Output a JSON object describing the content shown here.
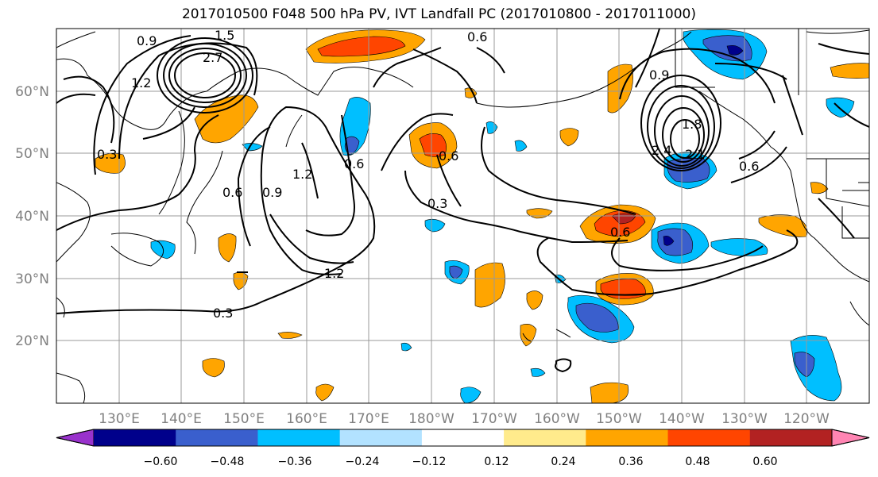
{
  "title": "2017010500 F048 500 hPa PV, IVT Landfall PC (2017010800 - 2017011000)",
  "lon_labels": [
    "130°E",
    "140°E",
    "150°E",
    "160°E",
    "170°E",
    "180°W",
    "170°W",
    "160°W",
    "150°W",
    "140°W",
    "130°W",
    "120°W"
  ],
  "lat_labels": [
    "60°N",
    "50°N",
    "40°N",
    "30°N",
    "20°N"
  ],
  "colorbar": {
    "labels": [
      "−0.60",
      "−0.48",
      "−0.36",
      "−0.24",
      "−0.12",
      "0.12",
      "0.24",
      "0.36",
      "0.48",
      "0.60"
    ],
    "colors": [
      "#9932cc",
      "#00008b",
      "#3a5fcd",
      "#00bfff",
      "#b2e2ff",
      "#ffffff",
      "#ffeb8c",
      "#ffa500",
      "#ff4500",
      "#b22222",
      "#ff85b3"
    ]
  },
  "contour_labels": [
    "0.9",
    "1.5",
    "2.7",
    "1.2",
    "0.3",
    "0.6",
    "0.9",
    "1.2",
    "0.6",
    "1.2",
    "0.3",
    "0.6",
    "0.3",
    "0.6",
    "0.9",
    "1.8",
    "2.4",
    "2.1",
    "0.6",
    "0.6"
  ]
}
